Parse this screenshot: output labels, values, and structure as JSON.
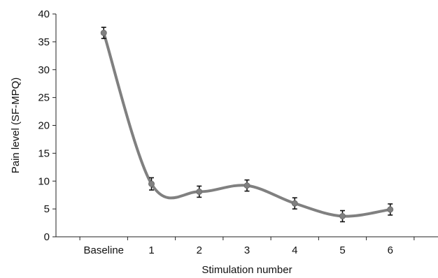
{
  "chart_data": {
    "type": "line",
    "categories": [
      "Baseline",
      "1",
      "2",
      "3",
      "4",
      "5",
      "6"
    ],
    "series": [
      {
        "values": [
          36.6,
          9.5,
          8.1,
          9.2,
          6.0,
          3.7,
          4.9
        ],
        "error": [
          1.0,
          1.1,
          1.0,
          1.0,
          1.0,
          1.0,
          1.0
        ],
        "color": "#808080"
      }
    ],
    "xlabel": "Stimulation number",
    "ylabel": "Pain level (SF-MPQ)",
    "ylim": [
      0,
      40
    ],
    "yticks": [
      0,
      5,
      10,
      15,
      20,
      25,
      30,
      35,
      40
    ],
    "grid": false,
    "smooth": true,
    "error_bar_color": "#111111",
    "axis_color": "#222222"
  }
}
